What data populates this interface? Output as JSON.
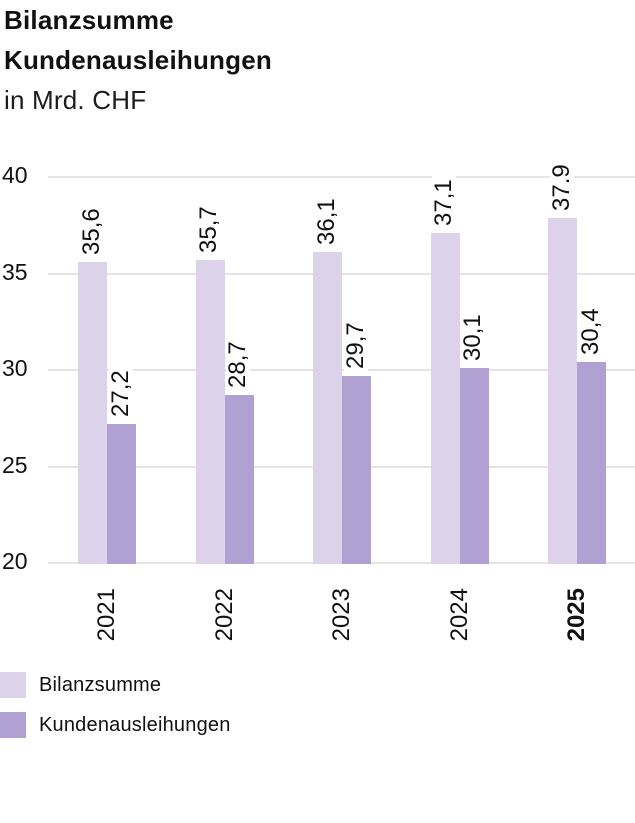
{
  "header": {
    "title_line1": "Bilanzsumme",
    "title_line2": "Kundenausleihungen",
    "subtitle": "in Mrd. CHF"
  },
  "chart_data": {
    "type": "bar",
    "title": "Bilanzsumme Kundenausleihungen",
    "unit_label": "in Mrd. CHF",
    "categories": [
      "2021",
      "2022",
      "2023",
      "2024",
      "2025"
    ],
    "bold_category": "2025",
    "series": [
      {
        "name": "Bilanzsumme",
        "color": "#dcd3ea",
        "values": [
          35.6,
          35.7,
          36.1,
          37.1,
          37.9
        ],
        "value_labels": [
          "35,6",
          "35,7",
          "36,1",
          "37,1",
          "37.9"
        ]
      },
      {
        "name": "Kundenausleihungen",
        "color": "#b1a1d3",
        "values": [
          27.2,
          28.7,
          29.7,
          30.1,
          30.4
        ],
        "value_labels": [
          "27,2",
          "28,7",
          "29,7",
          "30,1",
          "30,4"
        ]
      }
    ],
    "y_ticks": [
      40,
      35,
      30,
      25,
      20
    ],
    "ylim": [
      20,
      40
    ],
    "grid": true,
    "gridline_color": "#e4e4e4",
    "text_color": "#111111",
    "value_labels_rotated": true,
    "category_labels_rotated": true,
    "legend_position": "bottom-left"
  }
}
